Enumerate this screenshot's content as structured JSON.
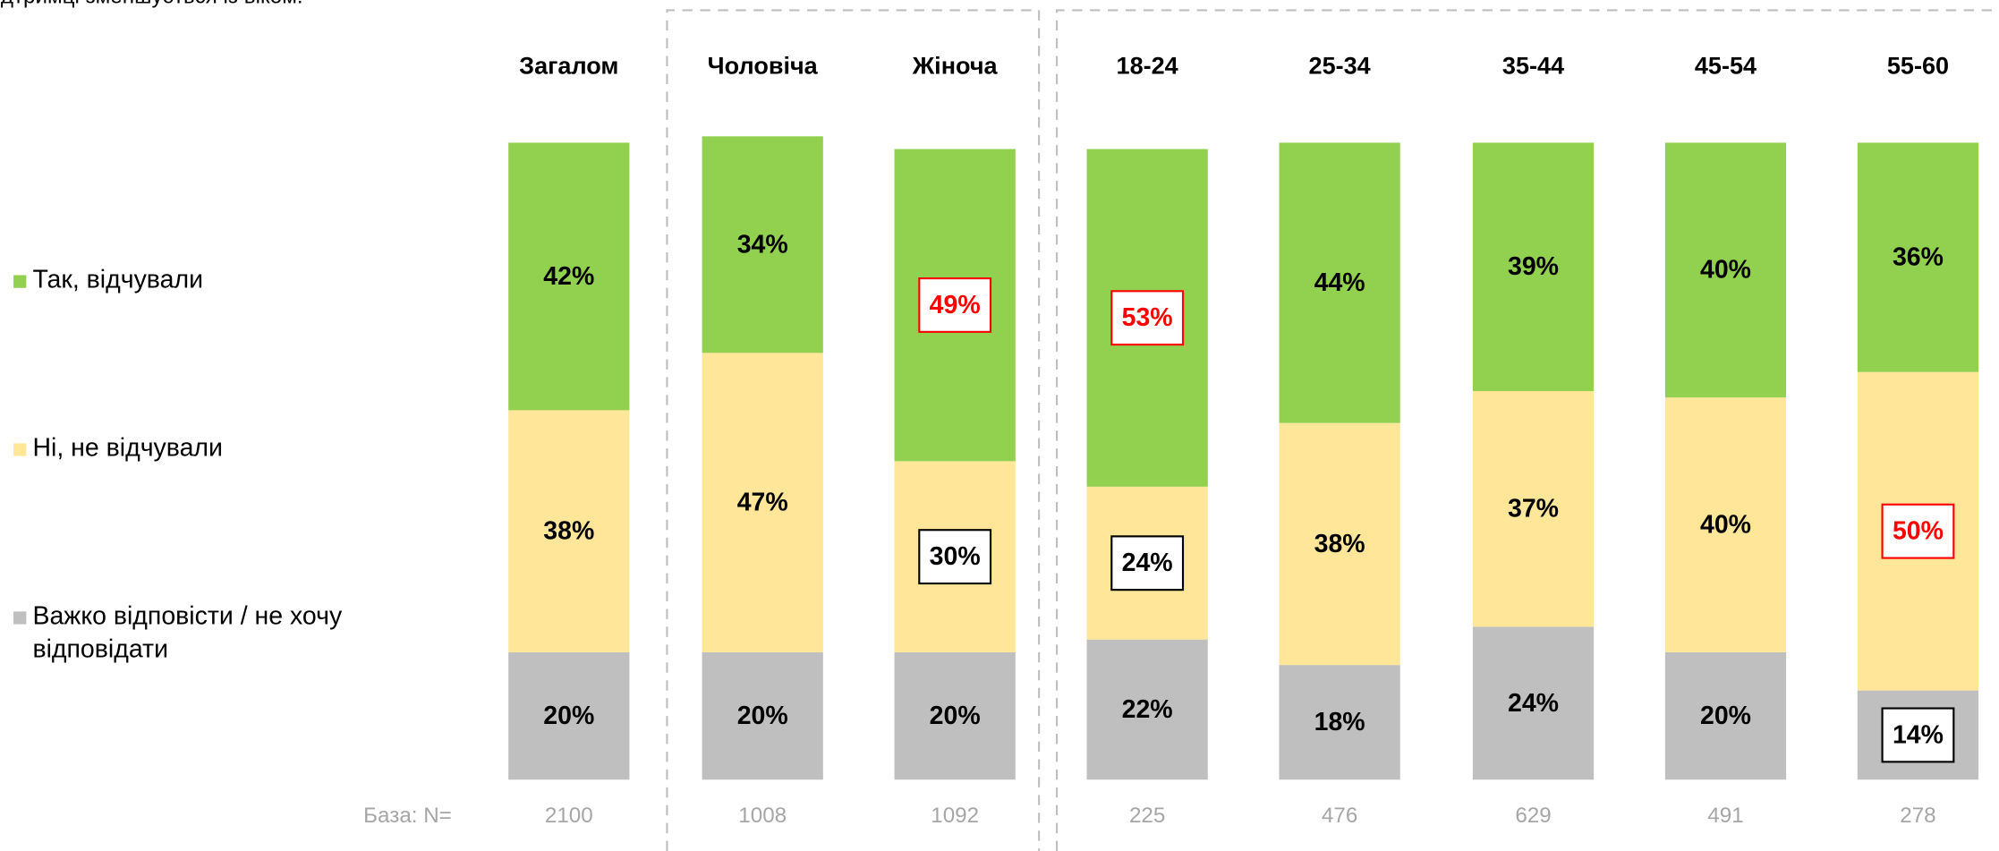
{
  "chart_data": {
    "type": "stacked_bar",
    "note": "дтримці зменшується із віком.",
    "categories": [
      "Загалом",
      "Чоловіча",
      "Жіноча",
      "18-24",
      "25-34",
      "35-44",
      "45-54",
      "55-60"
    ],
    "ylim": [
      0,
      100
    ],
    "series": [
      {
        "name": "Важко відповісти / не хочу відповідати",
        "color": "#bfbfbf",
        "values": [
          20,
          20,
          20,
          22,
          18,
          24,
          20,
          14
        ],
        "value_labels": [
          "20%",
          "20%",
          "20%",
          "22%",
          "18%",
          "24%",
          "20%",
          "14%"
        ],
        "label_box": [
          null,
          null,
          null,
          null,
          null,
          null,
          null,
          "#000000"
        ]
      },
      {
        "name": "Ні, не відчували",
        "color": "#ffe699",
        "values": [
          38,
          47,
          30,
          24,
          38,
          37,
          40,
          50
        ],
        "value_labels": [
          "38%",
          "47%",
          "30%",
          "24%",
          "38%",
          "37%",
          "40%",
          "50%"
        ],
        "label_box": [
          null,
          null,
          "#000000",
          "#000000",
          null,
          null,
          null,
          "#ff0000"
        ]
      },
      {
        "name": "Так, відчували",
        "color": "#92d050",
        "values": [
          42,
          34,
          49,
          53,
          44,
          39,
          40,
          36
        ],
        "value_labels": [
          "42%",
          "34%",
          "49%",
          "53%",
          "44%",
          "39%",
          "40%",
          "36%"
        ],
        "label_box": [
          null,
          null,
          "#ff0000",
          "#ff0000",
          null,
          null,
          null,
          null
        ]
      }
    ],
    "base_label": "База: N=",
    "bases": [
      2100,
      1008,
      1092,
      225,
      476,
      629,
      491,
      278
    ]
  }
}
